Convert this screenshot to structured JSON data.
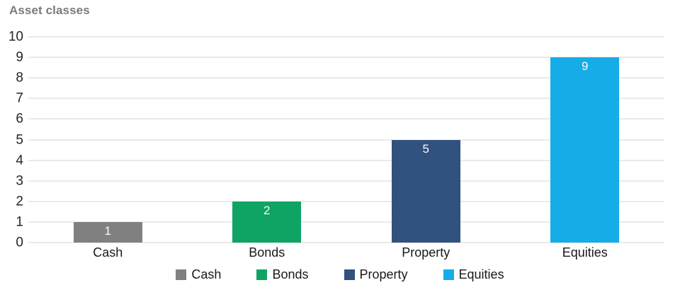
{
  "title": "Asset classes",
  "chart_data": {
    "type": "bar",
    "title": "Asset classes",
    "categories": [
      "Cash",
      "Bonds",
      "Property",
      "Equities"
    ],
    "values": [
      1,
      2,
      5,
      9
    ],
    "bar_colors": [
      "#808080",
      "#0FA464",
      "#31517E",
      "#15ACE8"
    ],
    "value_label_color": "#FFFFFF",
    "value_label_position": "inside-top",
    "xlabel": "",
    "ylabel": "",
    "ylim": [
      0,
      10
    ],
    "yticks": [
      0,
      1,
      2,
      3,
      4,
      5,
      6,
      7,
      8,
      9,
      10
    ],
    "grid": "horizontal",
    "gridline_color": "#EAEAEA",
    "axis_text_color": "#262626",
    "title_color": "#7B7B7B",
    "legend": {
      "position": "bottom",
      "entries": [
        {
          "label": "Cash",
          "color": "#808080"
        },
        {
          "label": "Bonds",
          "color": "#0FA464"
        },
        {
          "label": "Property",
          "color": "#31517E"
        },
        {
          "label": "Equities",
          "color": "#15ACE8"
        }
      ]
    }
  }
}
